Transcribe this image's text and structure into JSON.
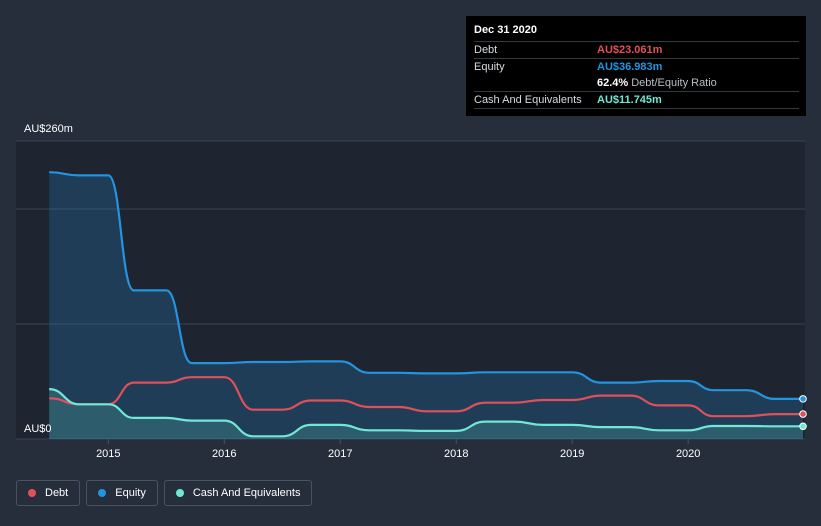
{
  "colors": {
    "debt": "#e0505b",
    "equity": "#2394df",
    "cash": "#71e7d6",
    "grid": "#3a4251",
    "plot_bg": "#1e2530",
    "background": "#262e3b"
  },
  "tooltip": {
    "date": "Dec 31 2020",
    "rows": [
      {
        "key": "Debt",
        "value": "AU$23.061m"
      },
      {
        "key": "Equity",
        "value": "AU$36.983m"
      },
      {
        "key": "",
        "value": "62.4%",
        "note": "Debt/Equity Ratio"
      },
      {
        "key": "Cash And Equivalents",
        "value": "AU$11.745m"
      }
    ]
  },
  "legend": {
    "items": [
      {
        "label": "Debt"
      },
      {
        "label": "Equity"
      },
      {
        "label": "Cash And Equivalents"
      }
    ]
  },
  "chart_data": {
    "type": "line",
    "title": "",
    "xlabel": "",
    "ylabel": "",
    "y_top_label": "AU$260m",
    "y_bottom_label": "AU$0",
    "ylim": [
      0,
      260
    ],
    "xlim": [
      2014.48,
      2020.99
    ],
    "x_ticks": [
      {
        "value": 2015,
        "label": "2015"
      },
      {
        "value": 2016,
        "label": "2016"
      },
      {
        "value": 2017,
        "label": "2017"
      },
      {
        "value": 2018,
        "label": "2018"
      },
      {
        "value": 2019,
        "label": "2019"
      },
      {
        "value": 2020,
        "label": "2020"
      }
    ],
    "grid": true,
    "legend_position": "bottom-left",
    "series": [
      {
        "name": "Equity",
        "key": "equity",
        "filled": true,
        "points": [
          [
            2014.49,
            246
          ],
          [
            2014.75,
            243
          ],
          [
            2015.0,
            243
          ],
          [
            2015.22,
            137
          ],
          [
            2015.5,
            137
          ],
          [
            2015.72,
            70
          ],
          [
            2016.0,
            70
          ],
          [
            2016.25,
            71
          ],
          [
            2016.5,
            71
          ],
          [
            2016.75,
            71.5
          ],
          [
            2017.0,
            71.5
          ],
          [
            2017.25,
            61
          ],
          [
            2017.5,
            61
          ],
          [
            2017.75,
            60.5
          ],
          [
            2018.0,
            60.5
          ],
          [
            2018.25,
            61.5
          ],
          [
            2018.5,
            61.5
          ],
          [
            2018.75,
            61.5
          ],
          [
            2019.0,
            61.5
          ],
          [
            2019.25,
            52
          ],
          [
            2019.5,
            52
          ],
          [
            2019.75,
            53.5
          ],
          [
            2020.0,
            53.5
          ],
          [
            2020.22,
            45
          ],
          [
            2020.5,
            45
          ],
          [
            2020.75,
            37
          ],
          [
            2020.99,
            37
          ]
        ]
      },
      {
        "name": "Debt",
        "key": "debt",
        "filled": false,
        "points": [
          [
            2014.49,
            37.5
          ],
          [
            2014.75,
            32
          ],
          [
            2015.0,
            32
          ],
          [
            2015.22,
            52
          ],
          [
            2015.5,
            52
          ],
          [
            2015.72,
            57
          ],
          [
            2016.0,
            57
          ],
          [
            2016.25,
            27
          ],
          [
            2016.5,
            27
          ],
          [
            2016.75,
            35.5
          ],
          [
            2017.0,
            35.5
          ],
          [
            2017.25,
            29.5
          ],
          [
            2017.5,
            29.5
          ],
          [
            2017.75,
            25.5
          ],
          [
            2018.0,
            25.5
          ],
          [
            2018.25,
            33.5
          ],
          [
            2018.5,
            33.5
          ],
          [
            2018.75,
            36
          ],
          [
            2019.0,
            36
          ],
          [
            2019.25,
            40
          ],
          [
            2019.5,
            40
          ],
          [
            2019.75,
            31
          ],
          [
            2020.0,
            31
          ],
          [
            2020.22,
            21
          ],
          [
            2020.5,
            21
          ],
          [
            2020.75,
            23
          ],
          [
            2020.99,
            23
          ]
        ]
      },
      {
        "name": "Cash And Equivalents",
        "key": "cash",
        "filled": true,
        "points": [
          [
            2014.49,
            46
          ],
          [
            2014.75,
            32
          ],
          [
            2015.0,
            32
          ],
          [
            2015.22,
            19.5
          ],
          [
            2015.5,
            19.5
          ],
          [
            2015.72,
            17
          ],
          [
            2016.0,
            17
          ],
          [
            2016.25,
            2.5
          ],
          [
            2016.5,
            2.5
          ],
          [
            2016.75,
            13
          ],
          [
            2017.0,
            13
          ],
          [
            2017.25,
            8
          ],
          [
            2017.5,
            8
          ],
          [
            2017.75,
            7.5
          ],
          [
            2018.0,
            7.5
          ],
          [
            2018.25,
            16
          ],
          [
            2018.5,
            16
          ],
          [
            2018.75,
            13
          ],
          [
            2019.0,
            13
          ],
          [
            2019.25,
            11
          ],
          [
            2019.5,
            11
          ],
          [
            2019.75,
            8
          ],
          [
            2020.0,
            8
          ],
          [
            2020.22,
            12
          ],
          [
            2020.5,
            12
          ],
          [
            2020.75,
            11.7
          ],
          [
            2020.99,
            11.7
          ]
        ]
      }
    ]
  }
}
